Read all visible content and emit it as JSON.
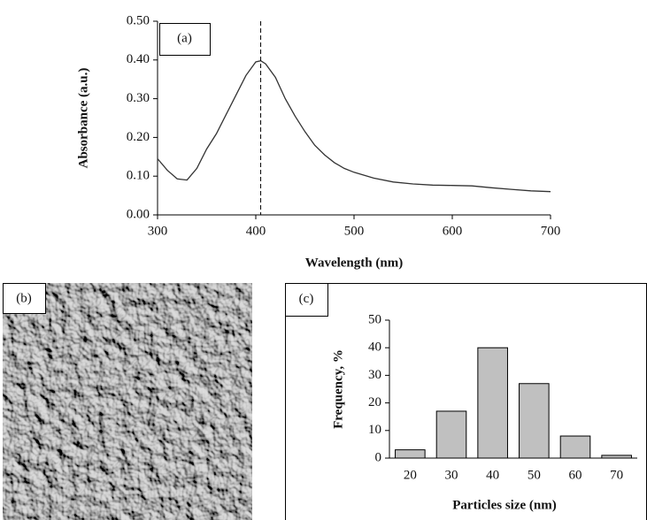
{
  "chart_data": [
    {
      "type": "line",
      "panel_label": "(a)",
      "x_label": "Wavelength (nm)",
      "y_label": "Absorbance (a.u.)",
      "x": [
        300,
        310,
        320,
        330,
        340,
        350,
        360,
        370,
        380,
        390,
        400,
        405,
        410,
        420,
        430,
        440,
        450,
        460,
        470,
        480,
        490,
        500,
        520,
        540,
        560,
        580,
        600,
        620,
        640,
        660,
        680,
        700
      ],
      "values": [
        0.145,
        0.115,
        0.093,
        0.09,
        0.12,
        0.17,
        0.21,
        0.26,
        0.31,
        0.36,
        0.395,
        0.398,
        0.39,
        0.355,
        0.3,
        0.255,
        0.215,
        0.18,
        0.155,
        0.135,
        0.12,
        0.11,
        0.095,
        0.085,
        0.08,
        0.077,
        0.076,
        0.075,
        0.07,
        0.066,
        0.062,
        0.06
      ],
      "color": "#333333",
      "vline_x": 405,
      "xlim": [
        300,
        700
      ],
      "xticks": [
        300,
        400,
        500,
        600,
        700
      ],
      "ylim": [
        0,
        0.5
      ],
      "yticks": [
        {
          "value": 0,
          "label": "0.00"
        },
        {
          "value": 0.1,
          "label": "0.10"
        },
        {
          "value": 0.2,
          "label": "0.20"
        },
        {
          "value": 0.3,
          "label": "0.30"
        },
        {
          "value": 0.4,
          "label": "0.40"
        },
        {
          "value": 0.5,
          "label": "0.50"
        }
      ]
    },
    {
      "type": "bar",
      "panel_label": "(c)",
      "x_label": "Particles size (nm)",
      "y_label": "Frequency, %",
      "categories": [
        "20",
        "30",
        "40",
        "50",
        "60",
        "70"
      ],
      "values": [
        3,
        17,
        40,
        27,
        8,
        1
      ],
      "color": "#c0c0c0",
      "ylim": [
        0,
        50
      ],
      "yticks": [
        0,
        10,
        20,
        30,
        40,
        50
      ]
    }
  ],
  "image": {
    "panel_label": "(b)"
  }
}
